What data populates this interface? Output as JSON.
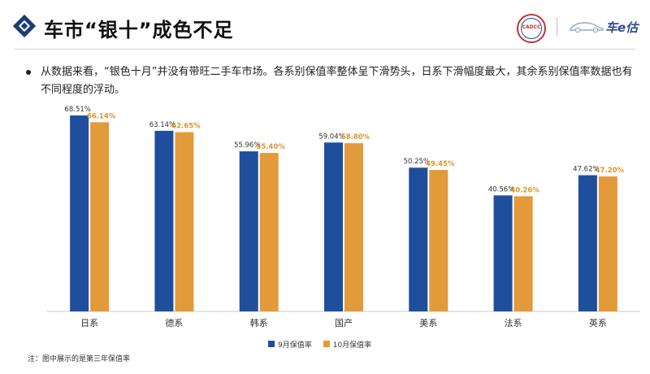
{
  "header": {
    "title": "车市“银十”成色不足",
    "logo_org": "CADCC",
    "logo_brand": "车e估"
  },
  "bullet_text": "从数据来看，“银色十月”并没有带旺二手车市场。各系别保值率整体呈下滑势头，日系下滑幅度最大，其余系别保值率数据也有不同程度的浮动。",
  "note": "注：图中展示的是第三年保值率",
  "colors": {
    "september": "#1f4e9c",
    "october": "#e39a3b",
    "october_label": "#d9962e",
    "title_accent": "#1f3b73"
  },
  "chart_data": {
    "type": "bar",
    "categories": [
      "日系",
      "德系",
      "韩系",
      "国产",
      "美系",
      "法系",
      "英系"
    ],
    "series": [
      {
        "name": "9月保值率",
        "values": [
          68.51,
          63.14,
          55.96,
          59.04,
          50.25,
          40.56,
          47.62
        ],
        "labels": [
          "68.51%",
          "63.14%",
          "55.96%",
          "59.04%",
          "50.25%",
          "40.56%",
          "47.62%"
        ]
      },
      {
        "name": "10月保值率",
        "values": [
          66.14,
          62.65,
          55.4,
          58.8,
          49.45,
          40.26,
          47.2
        ],
        "labels": [
          "66.14%",
          "62.65%",
          "55.40%",
          "58.80%",
          "49.45%",
          "40.26%",
          "47.20%"
        ]
      }
    ],
    "ylim": [
      0,
      70
    ],
    "grid": false,
    "legend": "bottom-center"
  }
}
